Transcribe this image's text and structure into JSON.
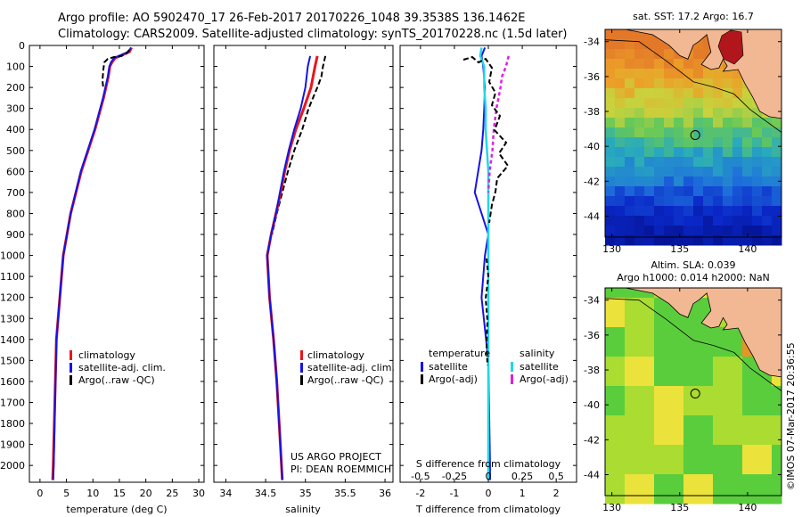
{
  "header": {
    "line1": "Argo profile: AO 5902470_17 26-Feb-2017 20170226_1048 39.3538S 136.1462E",
    "line2": "Climatology: CARS2009. Satellite-adjusted climatology: synTS_20170228.nc (1.5d later)"
  },
  "depth_ticks": [
    "0",
    "100",
    "200",
    "300",
    "400",
    "500",
    "600",
    "700",
    "800",
    "900",
    "1000",
    "1100",
    "1200",
    "1300",
    "1400",
    "1500",
    "1600",
    "1700",
    "1800",
    "1900",
    "2000"
  ],
  "colors": {
    "climatology": "#e8161b",
    "satellite": "#1414e6",
    "argo": "#000000",
    "sat_salinity": "#22d8e8",
    "argo_adj_salinity": "#e020e0",
    "land": "#f2b894",
    "highlight": "#b0161b"
  },
  "chart_data": [
    {
      "type": "line",
      "xlabel": "temperature (deg C)",
      "ylabel": "",
      "xlim": [
        -2,
        31
      ],
      "ylim": [
        2080,
        0
      ],
      "xticks": [
        "0",
        "5",
        "10",
        "15",
        "20",
        "25",
        "30"
      ],
      "legend": [
        "climatology",
        "satellite-adj. clim.",
        "Argo(..raw -QC)"
      ],
      "series": [
        {
          "name": "climatology",
          "depth": [
            10,
            30,
            60,
            80,
            100,
            150,
            250,
            400,
            600,
            800,
            1000,
            1400,
            2000,
            2070
          ],
          "values": [
            17.3,
            16.9,
            14.2,
            13.6,
            13.2,
            12.9,
            12.0,
            10.4,
            7.8,
            5.8,
            4.4,
            3.1,
            2.5,
            2.4
          ]
        },
        {
          "name": "satellite-adj. clim.",
          "depth": [
            10,
            30,
            60,
            80,
            100,
            150,
            250,
            400,
            600,
            800,
            1000,
            1400,
            2000,
            2070
          ],
          "values": [
            17.2,
            16.7,
            14.0,
            13.4,
            13.1,
            12.8,
            11.9,
            10.3,
            7.7,
            5.8,
            4.4,
            3.1,
            2.6,
            2.5
          ]
        }
      ]
    },
    {
      "type": "line",
      "xlabel": "salinity",
      "ylabel": "",
      "xlim": [
        33.85,
        36.1
      ],
      "ylim": [
        2080,
        0
      ],
      "xticks": [
        "34",
        "34.5",
        "35",
        "35.5",
        "36"
      ],
      "legend": [
        "climatology",
        "satellite-adj. clim.",
        "Argo(..raw -QC)"
      ],
      "annotation": [
        "US ARGO PROJECT",
        "PI: DEAN ROEMMICH"
      ],
      "series": [
        {
          "name": "climatology",
          "depth": [
            50,
            100,
            200,
            300,
            400,
            500,
            600,
            700,
            800,
            900,
            1000,
            1200,
            1400,
            1600,
            1800,
            2000,
            2070
          ],
          "values": [
            35.15,
            35.12,
            35.07,
            34.98,
            34.88,
            34.8,
            34.74,
            34.69,
            34.63,
            34.57,
            34.52,
            34.55,
            34.6,
            34.64,
            34.67,
            34.7,
            34.71
          ]
        },
        {
          "name": "satellite-adj. clim.",
          "depth": [
            50,
            100,
            200,
            300,
            400,
            500,
            600,
            700,
            800,
            900,
            1000,
            1200,
            1400,
            1600,
            1800,
            2000,
            2070
          ],
          "values": [
            35.06,
            35.03,
            35.0,
            34.94,
            34.86,
            34.79,
            34.73,
            34.68,
            34.63,
            34.57,
            34.52,
            34.55,
            34.6,
            34.64,
            34.67,
            34.7,
            34.71
          ]
        },
        {
          "name": "Argo(..raw -QC)",
          "depth": [
            50,
            100,
            150,
            200,
            300,
            400,
            500,
            600,
            700,
            800,
            900
          ],
          "values": [
            35.25,
            35.22,
            35.2,
            35.15,
            35.04,
            34.96,
            34.86,
            34.78,
            34.71,
            34.64,
            34.58
          ]
        }
      ]
    },
    {
      "type": "line",
      "xlabel": "T difference from climatology",
      "x2label": "S difference from climatology",
      "xlim": [
        -2.6,
        2.6
      ],
      "ylim": [
        2080,
        0
      ],
      "xticks": [
        "-2",
        "-1",
        "0",
        "1",
        "2"
      ],
      "x2ticks": [
        "-0.5",
        "-0.25",
        "0",
        "0.25",
        "0.5"
      ],
      "legend_titles": [
        "temperature",
        "salinity"
      ],
      "legend": [
        "satellite",
        "Argo(-adj)",
        "satellite",
        "Argo(-adj)"
      ],
      "series": [
        {
          "name": "temperature satellite",
          "depth": [
            10,
            50,
            100,
            200,
            300,
            400,
            500,
            600,
            700,
            800,
            900,
            1000,
            1200,
            1500,
            2000,
            2070
          ],
          "values": [
            -0.1,
            -0.2,
            -0.15,
            -0.1,
            -0.12,
            -0.15,
            -0.2,
            -0.3,
            -0.4,
            -0.2,
            0.0,
            -0.1,
            -0.2,
            0.0,
            0.05,
            0.05
          ]
        },
        {
          "name": "salinity satellite",
          "depth": [
            10,
            50,
            100,
            200,
            300,
            400,
            500,
            600,
            700,
            800,
            900,
            1000,
            1500,
            2000,
            2070
          ],
          "values": [
            -0.05,
            -0.06,
            -0.03,
            -0.03,
            -0.02,
            -0.02,
            -0.01,
            0.0,
            0.0,
            0.0,
            0.0,
            0.0,
            0.0,
            0.0,
            0.0
          ]
        },
        {
          "name": "salinity Argo(-adj)",
          "depth": [
            50,
            100,
            150,
            200,
            300,
            400,
            500,
            600,
            700
          ],
          "values": [
            0.15,
            0.13,
            0.1,
            0.09,
            0.06,
            0.04,
            0.03,
            0.01,
            0.0
          ]
        }
      ]
    },
    {
      "type": "heatmap",
      "title": "sat. SST: 17.2  Argo: 16.7",
      "xticks": [
        "130",
        "135",
        "140"
      ],
      "yticks": [
        "-34",
        "-36",
        "-38",
        "-40",
        "-42",
        "-44"
      ],
      "xlim": [
        129.5,
        142.5
      ],
      "ylim": [
        -45.2,
        -33.3
      ],
      "marker": {
        "lon": 136.1462,
        "lat": -39.3538
      }
    },
    {
      "type": "heatmap",
      "title": "Altim. SLA: 0.039",
      "subtitle": "Argo h1000: 0.014 h2000: NaN",
      "xticks": [
        "130",
        "135",
        "140"
      ],
      "yticks": [
        "-34",
        "-36",
        "-38",
        "-40",
        "-42",
        "-44"
      ],
      "xlim": [
        129.5,
        142.5
      ],
      "ylim": [
        -45.2,
        -33.3
      ],
      "marker": {
        "lon": 136.1462,
        "lat": -39.3538
      },
      "side_label": "©IMOS 07-Mar-2017 20:36:55"
    }
  ]
}
